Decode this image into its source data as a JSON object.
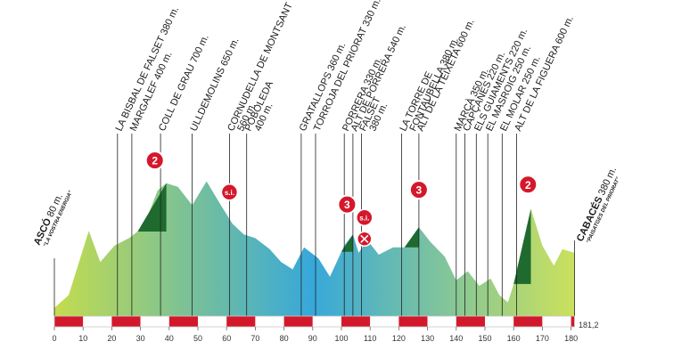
{
  "route": {
    "start": {
      "name": "ASCÓ",
      "alt": "80 m.",
      "slogan": "\"LA VOSTRA ENERGIA\""
    },
    "finish": {
      "name": "CABACÉS",
      "alt": "380 m.",
      "slogan": "\"PAISATGES DEL PRIORAT\""
    },
    "total_distance": "181,2"
  },
  "axis": {
    "ticks": [
      "0",
      "10",
      "20",
      "30",
      "40",
      "50",
      "60",
      "70",
      "80",
      "90",
      "100",
      "110",
      "120",
      "130",
      "140",
      "150",
      "160",
      "170",
      "180"
    ]
  },
  "points": [
    {
      "km": 22,
      "label": "LA BISBAL DE FALSET 380 m."
    },
    {
      "km": 27,
      "label": "MARGALEF 400 m."
    },
    {
      "km": 37,
      "label": "COLL DE GRAU 700 m."
    },
    {
      "km": 48,
      "label": "ULLDEMOLINS 650 m."
    },
    {
      "km": 61,
      "label": "CORNUDELLA DE MONTSANT"
    },
    {
      "km": 61,
      "label": "560 m."
    },
    {
      "km": 67,
      "label": "POBOLEDA"
    },
    {
      "km": 67,
      "label": "400 m."
    },
    {
      "km": 86,
      "label": "GRATALLOPS 360 m."
    },
    {
      "km": 91,
      "label": "TORROJA DEL PRIORAT 330 m."
    },
    {
      "km": 101,
      "label": "PORRERA 330 m."
    },
    {
      "km": 104,
      "label": "ALT DE PORRERA 540 m."
    },
    {
      "km": 107,
      "label": "FALSET"
    },
    {
      "km": 107,
      "label": "380 m."
    },
    {
      "km": 121,
      "label": "LA TORRE DE"
    },
    {
      "km": 121,
      "label": "FONTAUBELLA 380 m."
    },
    {
      "km": 127,
      "label": "ALT DE LA TEIXETA 600 m."
    },
    {
      "km": 140,
      "label": "MARÇÀ 350 m."
    },
    {
      "km": 143,
      "label": "CAPÇANES 220 m."
    },
    {
      "km": 147,
      "label": "ELS GUIAMENTS 220 m."
    },
    {
      "km": 151,
      "label": "EL MASROIG 250 m."
    },
    {
      "km": 156,
      "label": "EL MOLAR 250 m."
    },
    {
      "km": 161,
      "label": "ALT DE LA FIGUERA 600 m."
    }
  ],
  "badges": {
    "climbs": [
      {
        "km": 35,
        "category": "2"
      },
      {
        "km": 102,
        "category": "3"
      },
      {
        "km": 127,
        "category": "3"
      },
      {
        "km": 165,
        "category": "2"
      }
    ],
    "sprints": [
      {
        "km": 61,
        "label": "s.i."
      },
      {
        "km": 108,
        "label": "s.i."
      }
    ],
    "feed_zone_km": 108
  },
  "profile": {
    "colors": {
      "start": "#c4dc4e",
      "middle": "#37a8da",
      "end": "#c9e05e",
      "climb": "#1f6a2e",
      "band": "#d4182b"
    },
    "elevations": [
      [
        0,
        80
      ],
      [
        5,
        150
      ],
      [
        12,
        500
      ],
      [
        16,
        330
      ],
      [
        21,
        420
      ],
      [
        26,
        460
      ],
      [
        31,
        520
      ],
      [
        36,
        720
      ],
      [
        39,
        760
      ],
      [
        43,
        740
      ],
      [
        48,
        640
      ],
      [
        53,
        770
      ],
      [
        58,
        640
      ],
      [
        62,
        540
      ],
      [
        66,
        480
      ],
      [
        70,
        460
      ],
      [
        75,
        400
      ],
      [
        79,
        330
      ],
      [
        83,
        290
      ],
      [
        87,
        410
      ],
      [
        92,
        350
      ],
      [
        96,
        250
      ],
      [
        101,
        420
      ],
      [
        104,
        480
      ],
      [
        106,
        380
      ],
      [
        109,
        450
      ],
      [
        113,
        370
      ],
      [
        118,
        410
      ],
      [
        122,
        410
      ],
      [
        127,
        520
      ],
      [
        131,
        440
      ],
      [
        136,
        360
      ],
      [
        140,
        230
      ],
      [
        144,
        280
      ],
      [
        148,
        200
      ],
      [
        152,
        240
      ],
      [
        155,
        150
      ],
      [
        158,
        110
      ],
      [
        161,
        260
      ],
      [
        166,
        620
      ],
      [
        170,
        420
      ],
      [
        174,
        310
      ],
      [
        177,
        400
      ],
      [
        181.2,
        380
      ]
    ],
    "climbs": [
      [
        29,
        39
      ],
      [
        100,
        104
      ],
      [
        122,
        127
      ],
      [
        160,
        166
      ]
    ]
  }
}
